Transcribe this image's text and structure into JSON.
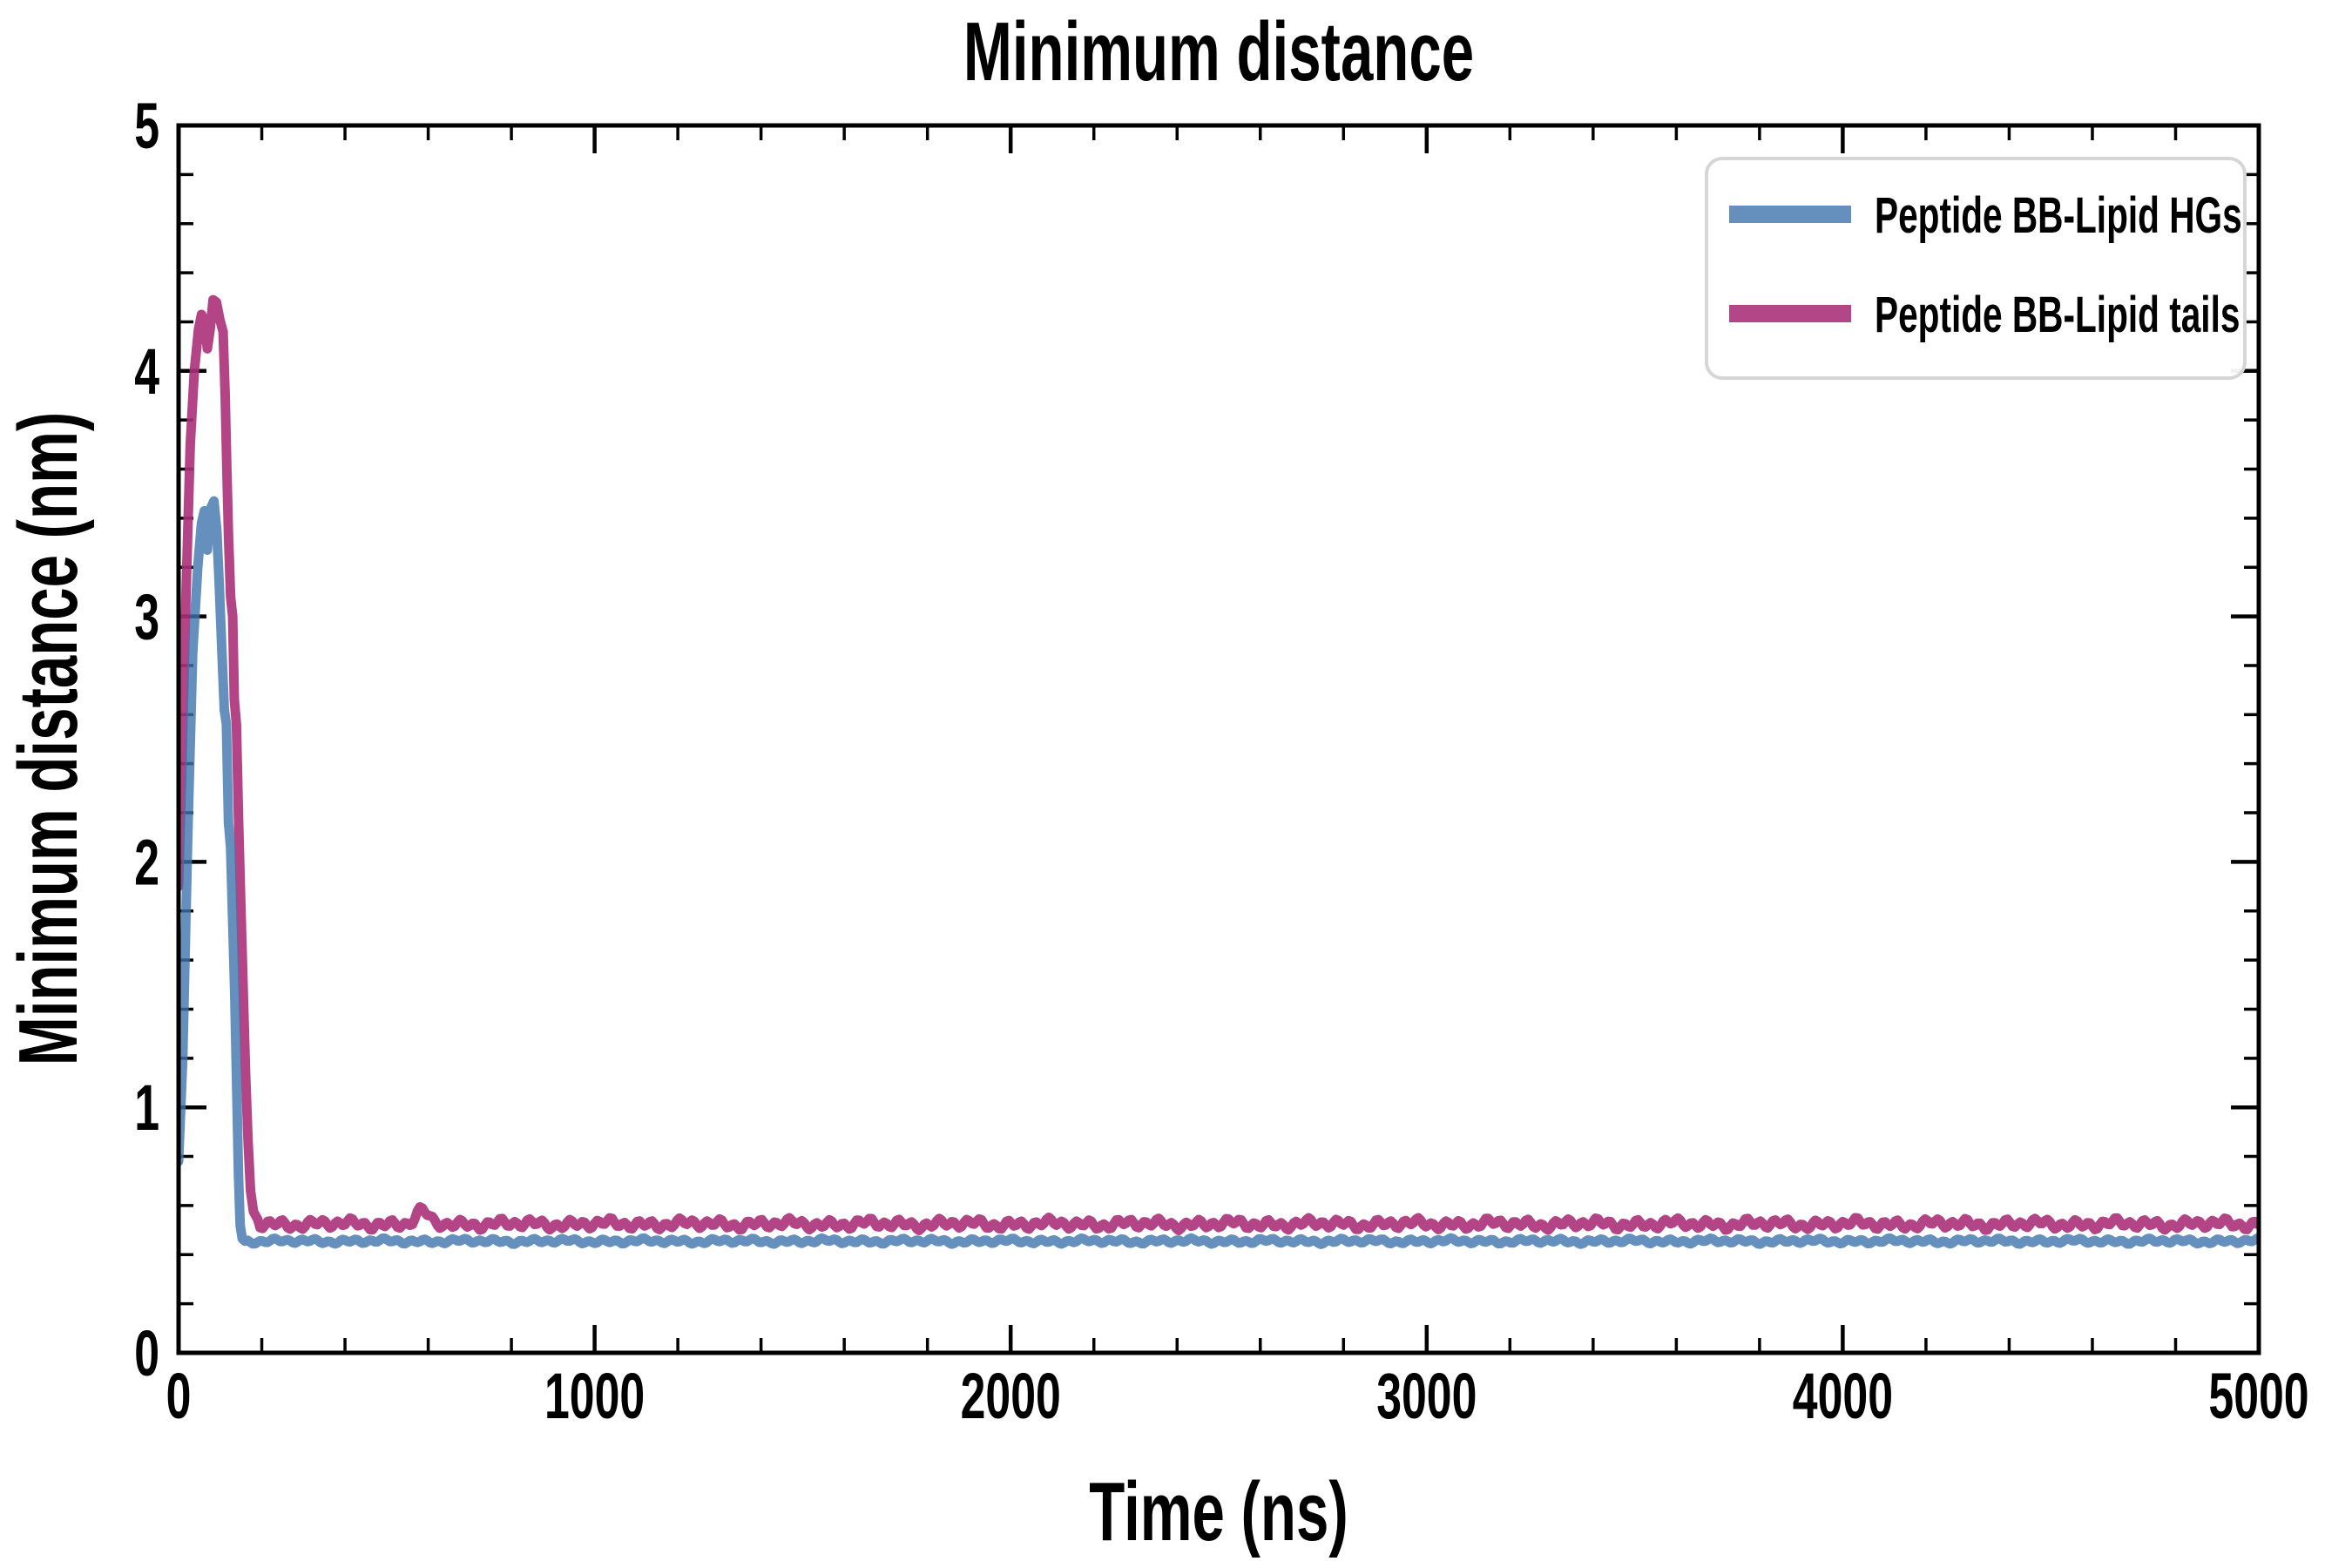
{
  "page": {
    "background": "#ffffff"
  },
  "chart": {
    "title": "Minimum distance",
    "xlabel": "Time (ns)",
    "ylabel": "Minimum distance (nm)",
    "axis_color": "#000000",
    "x_tick_labels": [
      "0",
      "1000",
      "2000",
      "3000",
      "4000",
      "5000"
    ],
    "y_tick_labels": [
      "0",
      "1",
      "2",
      "3",
      "4",
      "5"
    ],
    "legend": {
      "border_color": "#d6d6d6",
      "background": "#ffffff",
      "entries": [
        {
          "label": "Peptide BB-Lipid HGs",
          "swatch_color": "#6590bd"
        },
        {
          "label": "Peptide BB-Lipid tails",
          "swatch_color": "#b34686"
        }
      ]
    }
  },
  "chart_data": {
    "type": "line",
    "title": "Minimum distance",
    "xlabel": "Time (ns)",
    "ylabel": "Minimum distance (nm)",
    "x_unit": "ns",
    "y_unit": "nm",
    "xlim": [
      0,
      5000
    ],
    "ylim": [
      0,
      5
    ],
    "x_major_ticks": [
      0,
      1000,
      2000,
      3000,
      4000,
      5000
    ],
    "x_minor_step": 200,
    "y_major_ticks": [
      0,
      1,
      2,
      3,
      4,
      5
    ],
    "y_minor_step": 0.2,
    "grid": false,
    "legend_position": "upper right",
    "series": [
      {
        "name": "Peptide BB-Lipid tails",
        "base_color": "#ab3179",
        "opacity": 0.9,
        "rendered_color": "#b34686",
        "line_width": 11,
        "spike_keypoints": [
          [
            0,
            1.9
          ],
          [
            8,
            2.4
          ],
          [
            18,
            3.1
          ],
          [
            28,
            3.7
          ],
          [
            38,
            4.0
          ],
          [
            48,
            4.17
          ],
          [
            55,
            4.23
          ],
          [
            62,
            4.21
          ],
          [
            69,
            4.09
          ],
          [
            76,
            4.17
          ],
          [
            83,
            4.29
          ],
          [
            91,
            4.28
          ],
          [
            99,
            4.21
          ],
          [
            107,
            4.16
          ],
          [
            112,
            3.9
          ],
          [
            116,
            3.6
          ],
          [
            120,
            3.33
          ],
          [
            125,
            3.08
          ],
          [
            130,
            3.0
          ],
          [
            134,
            2.66
          ],
          [
            139,
            2.56
          ],
          [
            144,
            2.18
          ],
          [
            149,
            1.86
          ],
          [
            155,
            1.5
          ],
          [
            161,
            1.14
          ],
          [
            167,
            0.86
          ],
          [
            173,
            0.66
          ],
          [
            180,
            0.575
          ],
          [
            190,
            0.545
          ]
        ],
        "flat_segment": {
          "from": 190,
          "to": 5000,
          "mean": 0.525,
          "noise_amp": 0.027,
          "seed": 4.2
        },
        "bumps": [
          {
            "t": 585,
            "width": 20,
            "height": 0.05
          }
        ]
      },
      {
        "name": "Peptide BB-Lipid HGs",
        "base_color": "#3f74ad",
        "opacity": 0.8,
        "rendered_color": "#6590bd",
        "line_width": 11,
        "spike_keypoints": [
          [
            0,
            0.78
          ],
          [
            10,
            1.2
          ],
          [
            22,
            2.1
          ],
          [
            34,
            2.85
          ],
          [
            46,
            3.2
          ],
          [
            55,
            3.38
          ],
          [
            62,
            3.43
          ],
          [
            69,
            3.27
          ],
          [
            77,
            3.44
          ],
          [
            85,
            3.47
          ],
          [
            92,
            3.35
          ],
          [
            98,
            3.12
          ],
          [
            104,
            2.86
          ],
          [
            110,
            2.62
          ],
          [
            115,
            2.56
          ],
          [
            120,
            2.16
          ],
          [
            125,
            2.06
          ],
          [
            130,
            1.76
          ],
          [
            135,
            1.46
          ],
          [
            140,
            1.05
          ],
          [
            144,
            0.72
          ],
          [
            148,
            0.52
          ],
          [
            153,
            0.465
          ],
          [
            160,
            0.455
          ]
        ],
        "flat_segment": {
          "from": 160,
          "to": 5000,
          "mean": 0.455,
          "noise_amp": 0.013,
          "seed": 1.7
        },
        "bumps": []
      }
    ],
    "legend_order": [
      "Peptide BB-Lipid HGs",
      "Peptide BB-Lipid tails"
    ]
  }
}
